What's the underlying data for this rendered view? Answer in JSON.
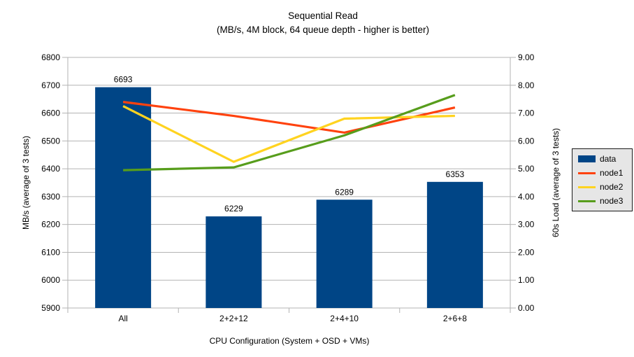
{
  "chart_data": {
    "type": "bar+line",
    "title": "Sequential Read",
    "subtitle": "(MB/s, 4M block, 64 queue depth - higher is better)",
    "categories": [
      "All",
      "2+2+12",
      "2+4+10",
      "2+6+8"
    ],
    "xlabel": "CPU Configuration (System + OSD + VMs)",
    "left_axis": {
      "label": "MB/s (average of 3 tests)",
      "min": 5900,
      "max": 6800,
      "step": 100
    },
    "right_axis": {
      "label": "60s Load (average of 3 tests)",
      "min": 0,
      "max": 9,
      "step": 1,
      "decimals": 2
    },
    "bar_series": {
      "name": "data",
      "color": "#004586",
      "axis": "left",
      "values": [
        6693,
        6229,
        6289,
        6353
      ],
      "value_labels": true
    },
    "line_series": [
      {
        "name": "node1",
        "color": "#ff420e",
        "axis": "right",
        "values": [
          7.4,
          6.9,
          6.3,
          7.2
        ]
      },
      {
        "name": "node2",
        "color": "#ffd320",
        "axis": "right",
        "values": [
          7.25,
          5.25,
          6.8,
          6.9
        ]
      },
      {
        "name": "node3",
        "color": "#579d1c",
        "axis": "right",
        "values": [
          4.95,
          5.05,
          6.2,
          7.65
        ]
      }
    ],
    "legend": {
      "position": "right",
      "background": "#e6e6e6",
      "border": "#1a1a1a"
    },
    "grid": {
      "horizontal": true,
      "vertical": false,
      "color": "#b3b3b3"
    },
    "axis_color": "#b3b3b3",
    "text_color": "#000000"
  }
}
